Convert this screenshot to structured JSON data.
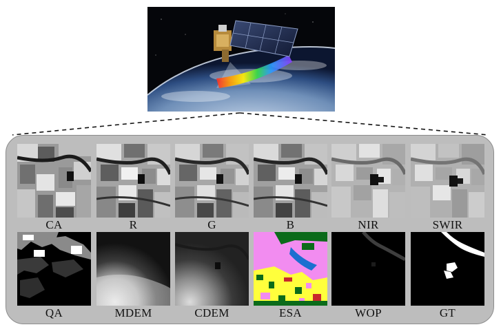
{
  "figure": {
    "row1": [
      {
        "key": "ca",
        "label": "CA"
      },
      {
        "key": "r",
        "label": "R"
      },
      {
        "key": "g",
        "label": "G"
      },
      {
        "key": "b",
        "label": "B"
      },
      {
        "key": "nir",
        "label": "NIR"
      },
      {
        "key": "swir",
        "label": "SWIR"
      }
    ],
    "row2": [
      {
        "key": "qa",
        "label": "QA"
      },
      {
        "key": "mdem",
        "label": "MDEM"
      },
      {
        "key": "cdem",
        "label": "CDEM"
      },
      {
        "key": "esa",
        "label": "ESA"
      },
      {
        "key": "wop",
        "label": "WOP"
      },
      {
        "key": "gt",
        "label": "GT"
      }
    ]
  },
  "colors": {
    "panel": "#bdbdbd",
    "space": "#05060a",
    "esa_cropland": "#f28cf0",
    "esa_builtup": "#ffff3c",
    "esa_tree": "#0b6b1a",
    "esa_water": "#1c6fd0",
    "esa_bare": "#c8282c",
    "gt_water": "#ffffff"
  }
}
